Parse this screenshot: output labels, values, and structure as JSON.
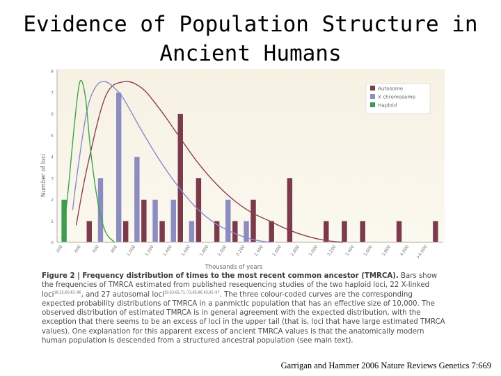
{
  "slide": {
    "title_line1": "Evidence of Population Structure in",
    "title_line2": "Ancient Humans",
    "citation": "Garrigan and Hammer 2006 Nature Reviews Genetics 7:669"
  },
  "caption": {
    "label": "Figure 2 | Frequency distribution of times to the most recent common ancestor (TMRCA).",
    "text1": " Bars show the frequencies of TMRCA estimated from published resequencing studies of the two haploid loci, 22 X-linked loci",
    "ref1": "18,25,60,81–96",
    "text2": ", and 27 autosomal loci",
    "ref2": "19,63,65,71–73,85,86,93,95–97",
    "text3": ". The three colour-coded curves are the corresponding expected probability distributions of TMRCA in a panmictic population that has an effective size of 10,000. The observed distribution of estimated TMRCA is in general agreement with the expected distribution, with the exception that there seems to be an excess of loci in the upper tail (that is, loci that have large estimated TMRCA values). One explanation for this apparent excess of ancient TMRCA values is that the anatomically modern human population is descended from a structured ancestral population (see main text)."
  },
  "chart_data": {
    "type": "bar",
    "xlabel": "Thousands of years",
    "ylabel": "Number of loci",
    "ylim": [
      0,
      8
    ],
    "yticks": [
      "0",
      "1",
      "2",
      "3",
      "4",
      "5",
      "6",
      "7",
      "8"
    ],
    "categories": [
      "200",
      "400",
      "600",
      "800",
      "1,000",
      "1,200",
      "1,400",
      "1,600",
      "1,800",
      "2,000",
      "2,200",
      "2,400",
      "2,600",
      "2,800",
      "3,000",
      "3,200",
      "3,400",
      "3,600",
      "3,800",
      "4,000",
      ">4,000"
    ],
    "series": [
      {
        "name": "Autosome",
        "color": "#7b3b4b",
        "values": [
          0,
          1,
          0,
          1,
          2,
          1,
          6,
          3,
          1,
          1,
          2,
          1,
          3,
          0,
          1,
          1,
          1,
          0,
          1,
          0,
          1
        ]
      },
      {
        "name": "X chromosome",
        "color": "#8c8cbf",
        "values": [
          0,
          0,
          3,
          7,
          4,
          2,
          2,
          1,
          0,
          2,
          1,
          0,
          0,
          0,
          0,
          0,
          0,
          0,
          0,
          0,
          0
        ]
      },
      {
        "name": "Haploid",
        "color": "#3f9a52",
        "values": [
          2,
          0,
          0,
          0,
          0,
          0,
          0,
          0,
          0,
          0,
          0,
          0,
          0,
          0,
          0,
          0,
          0,
          0,
          0,
          0,
          0
        ]
      }
    ],
    "curves": [
      {
        "series": "Autosome",
        "color": "#8a3f50",
        "x": [
          0.4,
          1,
          2,
          3,
          4,
          5,
          6,
          7,
          8,
          9,
          10,
          11,
          12,
          13,
          14,
          15
        ],
        "y": [
          0.8,
          3.5,
          6.8,
          7.5,
          7.2,
          6.2,
          5.0,
          3.8,
          2.8,
          2.0,
          1.4,
          1.0,
          0.6,
          0.3,
          0.1,
          0
        ]
      },
      {
        "series": "X chromosome",
        "color": "#8a8acb",
        "x": [
          0.2,
          0.5,
          1,
          1.5,
          2,
          2.5,
          3,
          4,
          5,
          6,
          7,
          8,
          9,
          10,
          11
        ],
        "y": [
          1.5,
          3.5,
          6.2,
          7.3,
          7.5,
          7.2,
          6.7,
          5.2,
          3.8,
          2.6,
          1.6,
          0.9,
          0.45,
          0.15,
          0
        ]
      },
      {
        "series": "Haploid",
        "color": "#3aa64a",
        "x": [
          -0.4,
          -0.2,
          0,
          0.3,
          0.6,
          0.9,
          1.2,
          1.6,
          2.0,
          2.5
        ],
        "y": [
          0.2,
          1.2,
          2.8,
          5.5,
          7.5,
          6.8,
          4.2,
          1.8,
          0.5,
          0
        ]
      }
    ],
    "legend_position": "top-right",
    "grid": false
  }
}
